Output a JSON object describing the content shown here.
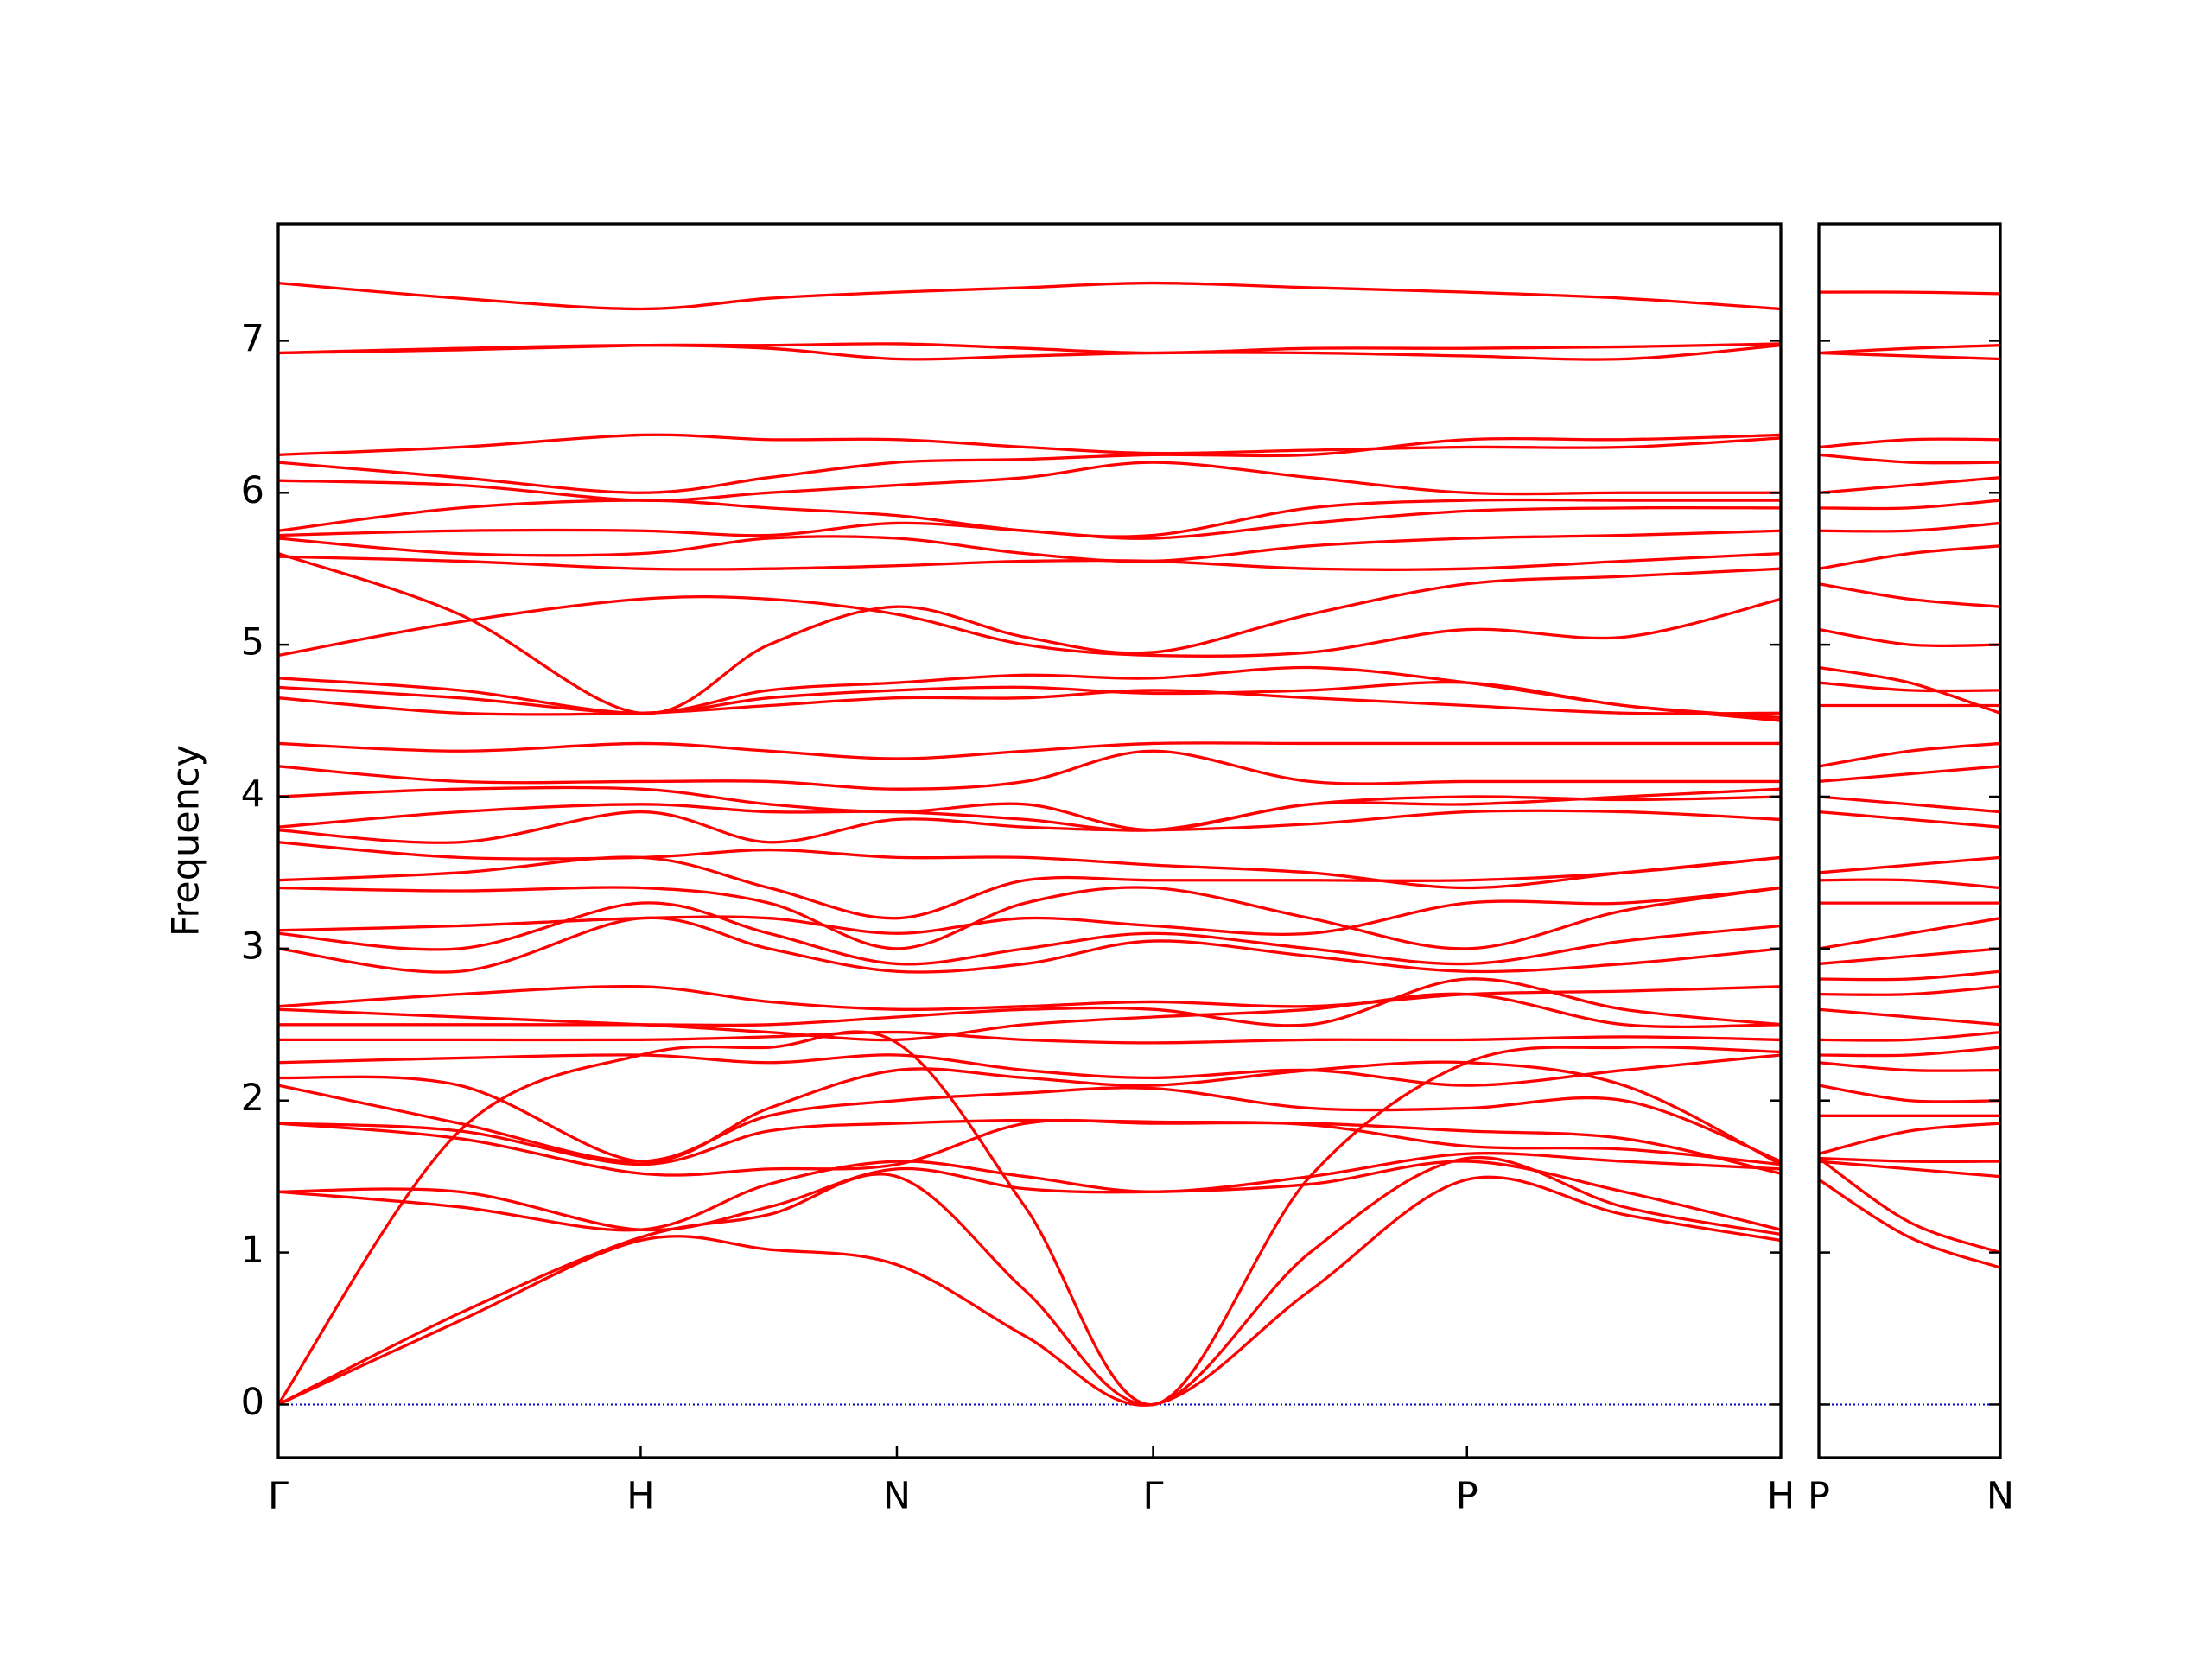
{
  "chart_data": [
    {
      "type": "line",
      "y_label": "Frequency",
      "color": "#ff0000",
      "zero_line": {
        "y": 0,
        "color": "#0000cc"
      },
      "x": [
        0,
        0.5,
        1,
        1.354,
        1.707,
        2.061,
        2.414,
        2.847,
        3.28,
        3.713,
        4.146
      ],
      "xlim": [
        0,
        4.146
      ],
      "xticks": [
        {
          "value": 0,
          "label": "Γ"
        },
        {
          "value": 1,
          "label": "H"
        },
        {
          "value": 1.707,
          "label": "N"
        },
        {
          "value": 2.414,
          "label": "Γ"
        },
        {
          "value": 3.28,
          "label": "P"
        },
        {
          "value": 4.146,
          "label": "H"
        }
      ],
      "ylim": [
        -0.35,
        7.77
      ],
      "yticks": [
        0,
        1,
        2,
        3,
        4,
        5,
        6,
        7
      ],
      "series": [
        {
          "values": [
            0,
            0.55,
            1.08,
            1.02,
            0.92,
            0.45,
            0,
            0.75,
            1.48,
            1.25,
            1.08
          ]
        },
        {
          "values": [
            0,
            0.6,
            1.1,
            1.25,
            1.5,
            0.75,
            0,
            1.0,
            1.62,
            1.3,
            1.12
          ]
        },
        {
          "values": [
            0,
            1.8,
            2.3,
            2.35,
            2.38,
            1.3,
            0,
            1.5,
            2.25,
            2.35,
            2.32
          ]
        },
        {
          "values": [
            1.4,
            1.4,
            1.15,
            1.3,
            1.55,
            1.42,
            1.4,
            1.45,
            1.6,
            1.4,
            1.15
          ]
        },
        {
          "values": [
            1.4,
            1.3,
            1.15,
            1.45,
            1.6,
            1.5,
            1.4,
            1.5,
            1.65,
            1.6,
            1.55
          ]
        },
        {
          "values": [
            1.85,
            1.75,
            1.52,
            1.55,
            1.58,
            1.85,
            1.85,
            1.85,
            1.8,
            1.75,
            1.52
          ]
        },
        {
          "values": [
            1.85,
            1.8,
            1.58,
            1.8,
            1.85,
            1.87,
            1.86,
            1.84,
            1.7,
            1.68,
            1.58
          ]
        },
        {
          "values": [
            2.1,
            1.85,
            1.6,
            1.9,
            2.0,
            2.05,
            2.08,
            1.95,
            1.95,
            2.0,
            1.6
          ]
        },
        {
          "values": [
            2.15,
            2.1,
            1.6,
            1.95,
            2.2,
            2.15,
            2.1,
            2.2,
            2.25,
            2.1,
            1.58
          ]
        },
        {
          "values": [
            2.25,
            2.28,
            2.3,
            2.25,
            2.3,
            2.2,
            2.15,
            2.2,
            2.1,
            2.2,
            2.3
          ]
        },
        {
          "values": [
            2.4,
            2.4,
            2.4,
            2.42,
            2.45,
            2.4,
            2.38,
            2.4,
            2.4,
            2.42,
            2.4
          ]
        },
        {
          "values": [
            2.5,
            2.5,
            2.5,
            2.5,
            2.55,
            2.6,
            2.6,
            2.5,
            2.8,
            2.6,
            2.5
          ]
        },
        {
          "values": [
            2.6,
            2.55,
            2.5,
            2.45,
            2.4,
            2.5,
            2.55,
            2.6,
            2.7,
            2.5,
            2.5
          ]
        },
        {
          "values": [
            2.62,
            2.7,
            2.75,
            2.65,
            2.6,
            2.62,
            2.65,
            2.62,
            2.7,
            2.72,
            2.75
          ]
        },
        {
          "values": [
            3.0,
            2.85,
            3.2,
            3.0,
            2.85,
            2.9,
            3.05,
            2.95,
            2.85,
            2.9,
            3.0
          ]
        },
        {
          "values": [
            3.1,
            3.0,
            3.3,
            3.1,
            2.9,
            3.0,
            3.1,
            3.0,
            2.9,
            3.05,
            3.15
          ]
        },
        {
          "values": [
            3.12,
            3.15,
            3.2,
            3.2,
            3.1,
            3.2,
            3.15,
            3.1,
            3.3,
            3.3,
            3.4
          ]
        },
        {
          "values": [
            3.4,
            3.38,
            3.4,
            3.3,
            3.0,
            3.3,
            3.4,
            3.2,
            3.0,
            3.25,
            3.4
          ]
        },
        {
          "values": [
            3.45,
            3.5,
            3.6,
            3.4,
            3.2,
            3.45,
            3.45,
            3.45,
            3.45,
            3.5,
            3.6
          ]
        },
        {
          "values": [
            3.7,
            3.6,
            3.6,
            3.65,
            3.6,
            3.6,
            3.55,
            3.5,
            3.4,
            3.5,
            3.6
          ]
        },
        {
          "values": [
            3.78,
            3.7,
            3.9,
            3.7,
            3.85,
            3.8,
            3.78,
            3.82,
            3.9,
            3.9,
            3.85
          ]
        },
        {
          "values": [
            3.8,
            3.9,
            3.95,
            3.9,
            3.9,
            3.85,
            3.78,
            3.95,
            4.0,
            3.98,
            4.0
          ]
        },
        {
          "values": [
            4.0,
            4.05,
            4.05,
            3.95,
            3.9,
            3.95,
            3.78,
            3.95,
            3.95,
            4.0,
            4.05
          ]
        },
        {
          "values": [
            4.2,
            4.1,
            4.1,
            4.1,
            4.05,
            4.1,
            4.3,
            4.1,
            4.1,
            4.1,
            4.1
          ]
        },
        {
          "values": [
            4.35,
            4.3,
            4.35,
            4.3,
            4.25,
            4.3,
            4.35,
            4.35,
            4.35,
            4.35,
            4.35
          ]
        },
        {
          "values": [
            4.65,
            4.55,
            4.55,
            4.6,
            4.65,
            4.65,
            4.7,
            4.65,
            4.6,
            4.55,
            4.55
          ]
        },
        {
          "values": [
            4.72,
            4.65,
            4.55,
            4.65,
            4.7,
            4.72,
            4.68,
            4.7,
            4.75,
            4.6,
            4.52
          ]
        },
        {
          "values": [
            4.78,
            4.7,
            4.55,
            4.7,
            4.75,
            4.8,
            4.78,
            4.85,
            4.75,
            4.6,
            4.5
          ]
        },
        {
          "values": [
            4.93,
            5.15,
            5.3,
            5.3,
            5.2,
            5.0,
            4.93,
            4.95,
            5.1,
            5.05,
            5.3
          ]
        },
        {
          "values": [
            5.6,
            5.2,
            4.55,
            5.0,
            5.25,
            5.05,
            4.95,
            5.2,
            5.4,
            5.45,
            5.5
          ]
        },
        {
          "values": [
            5.58,
            5.55,
            5.5,
            5.5,
            5.52,
            5.55,
            5.55,
            5.5,
            5.5,
            5.55,
            5.6
          ]
        },
        {
          "values": [
            5.7,
            5.6,
            5.6,
            5.7,
            5.7,
            5.6,
            5.55,
            5.65,
            5.7,
            5.72,
            5.75
          ]
        },
        {
          "values": [
            5.72,
            5.75,
            5.75,
            5.72,
            5.8,
            5.75,
            5.7,
            5.8,
            5.88,
            5.9,
            5.9
          ]
        },
        {
          "values": [
            5.75,
            5.9,
            5.95,
            5.9,
            5.85,
            5.75,
            5.72,
            5.9,
            5.95,
            5.95,
            5.95
          ]
        },
        {
          "values": [
            6.08,
            6.05,
            5.95,
            6.0,
            6.05,
            6.1,
            6.2,
            6.1,
            6.0,
            6.0,
            6.0
          ]
        },
        {
          "values": [
            6.2,
            6.1,
            6.0,
            6.1,
            6.2,
            6.22,
            6.25,
            6.25,
            6.35,
            6.35,
            6.38
          ]
        },
        {
          "values": [
            6.25,
            6.3,
            6.38,
            6.35,
            6.35,
            6.3,
            6.26,
            6.28,
            6.3,
            6.3,
            6.36
          ]
        },
        {
          "values": [
            6.92,
            6.95,
            6.97,
            6.95,
            6.88,
            6.9,
            6.92,
            6.92,
            6.9,
            6.88,
            6.97
          ]
        },
        {
          "values": [
            6.92,
            6.94,
            6.97,
            6.97,
            6.98,
            6.95,
            6.92,
            6.95,
            6.95,
            6.96,
            6.98
          ]
        },
        {
          "values": [
            7.38,
            7.28,
            7.21,
            7.28,
            7.32,
            7.35,
            7.38,
            7.35,
            7.32,
            7.28,
            7.21
          ]
        }
      ]
    },
    {
      "type": "line",
      "color": "#ff0000",
      "zero_line": {
        "y": 0,
        "color": "#0000cc"
      },
      "x": [
        0,
        0.25,
        0.5
      ],
      "xlim": [
        0,
        0.5
      ],
      "xticks": [
        {
          "value": 0,
          "label": "P"
        },
        {
          "value": 0.5,
          "label": "N"
        }
      ],
      "ylim": [
        -0.35,
        7.77
      ],
      "yticks": [
        0,
        1,
        2,
        3,
        4,
        5,
        6,
        7
      ],
      "series": [
        {
          "values": [
            1.48,
            1.1,
            0.9
          ]
        },
        {
          "values": [
            1.62,
            1.2,
            1.0
          ]
        },
        {
          "values": [
            1.6,
            1.55,
            1.5
          ]
        },
        {
          "values": [
            1.62,
            1.6,
            1.6
          ]
        },
        {
          "values": [
            1.65,
            1.8,
            1.85
          ]
        },
        {
          "values": [
            1.9,
            1.9,
            1.9
          ]
        },
        {
          "values": [
            2.1,
            2.0,
            2.0
          ]
        },
        {
          "values": [
            2.25,
            2.2,
            2.2
          ]
        },
        {
          "values": [
            2.3,
            2.3,
            2.35
          ]
        },
        {
          "values": [
            2.4,
            2.4,
            2.45
          ]
        },
        {
          "values": [
            2.6,
            2.55,
            2.5
          ]
        },
        {
          "values": [
            2.7,
            2.7,
            2.75
          ]
        },
        {
          "values": [
            2.8,
            2.8,
            2.85
          ]
        },
        {
          "values": [
            2.9,
            2.95,
            3.0
          ]
        },
        {
          "values": [
            3.0,
            3.1,
            3.2
          ]
        },
        {
          "values": [
            3.3,
            3.3,
            3.3
          ]
        },
        {
          "values": [
            3.45,
            3.45,
            3.4
          ]
        },
        {
          "values": [
            3.5,
            3.55,
            3.6
          ]
        },
        {
          "values": [
            3.9,
            3.85,
            3.8
          ]
        },
        {
          "values": [
            4.0,
            3.95,
            3.9
          ]
        },
        {
          "values": [
            4.1,
            4.15,
            4.2
          ]
        },
        {
          "values": [
            4.2,
            4.3,
            4.35
          ]
        },
        {
          "values": [
            4.6,
            4.6,
            4.6
          ]
        },
        {
          "values": [
            4.75,
            4.7,
            4.7
          ]
        },
        {
          "values": [
            4.85,
            4.75,
            4.55
          ]
        },
        {
          "values": [
            5.1,
            5.0,
            5.0
          ]
        },
        {
          "values": [
            5.4,
            5.3,
            5.25
          ]
        },
        {
          "values": [
            5.5,
            5.6,
            5.65
          ]
        },
        {
          "values": [
            5.75,
            5.75,
            5.8
          ]
        },
        {
          "values": [
            5.9,
            5.9,
            5.95
          ]
        },
        {
          "values": [
            6.0,
            6.05,
            6.1
          ]
        },
        {
          "values": [
            6.25,
            6.2,
            6.2
          ]
        },
        {
          "values": [
            6.3,
            6.35,
            6.35
          ]
        },
        {
          "values": [
            6.92,
            6.95,
            6.97
          ]
        },
        {
          "values": [
            6.92,
            6.9,
            6.88
          ]
        },
        {
          "values": [
            7.32,
            7.32,
            7.31
          ]
        }
      ]
    }
  ]
}
